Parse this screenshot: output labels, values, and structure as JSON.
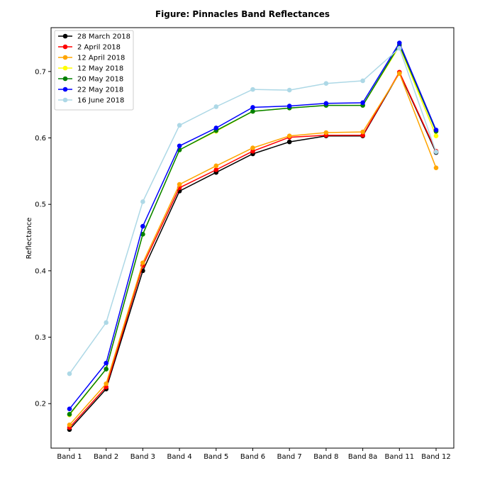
{
  "chart_data": {
    "type": "line",
    "title": "Figure: Pinnacles Band Reflectances",
    "xlabel": "",
    "ylabel": "Reflectance",
    "categories": [
      "Band 1",
      "Band 2",
      "Band 3",
      "Band 4",
      "Band 5",
      "Band 6",
      "Band 7",
      "Band 8",
      "Band 8a",
      "Band 11",
      "Band 12"
    ],
    "ylim": [
      0.133,
      0.766
    ],
    "yticks": [
      0.2,
      0.3,
      0.4,
      0.5,
      0.6,
      0.7
    ],
    "grid": false,
    "legend": "top-left",
    "marker": "circle",
    "series": [
      {
        "name": "28 March 2018",
        "color": "#000000",
        "values": [
          0.161,
          0.222,
          0.4,
          0.52,
          0.548,
          0.576,
          0.594,
          0.603,
          0.603,
          0.698,
          0.578
        ]
      },
      {
        "name": "2 April 2018",
        "color": "#ff0000",
        "values": [
          0.164,
          0.225,
          0.408,
          0.525,
          0.552,
          0.58,
          0.601,
          0.604,
          0.604,
          0.699,
          0.58
        ]
      },
      {
        "name": "12 April 2018",
        "color": "#ffa500",
        "values": [
          0.168,
          0.23,
          0.412,
          0.53,
          0.558,
          0.585,
          0.603,
          0.608,
          0.609,
          0.697,
          0.555
        ]
      },
      {
        "name": "12 May 2018",
        "color": "#ffff00",
        "values": [
          0.183,
          0.252,
          0.455,
          0.582,
          0.61,
          0.64,
          0.645,
          0.649,
          0.649,
          0.738,
          0.603
        ]
      },
      {
        "name": "20 May 2018",
        "color": "#008000",
        "values": [
          0.184,
          0.252,
          0.455,
          0.582,
          0.611,
          0.64,
          0.645,
          0.649,
          0.649,
          0.74,
          0.61
        ]
      },
      {
        "name": "22 May 2018",
        "color": "#0000ff",
        "values": [
          0.192,
          0.261,
          0.467,
          0.588,
          0.615,
          0.646,
          0.648,
          0.652,
          0.653,
          0.743,
          0.612
        ]
      },
      {
        "name": "16 June 2018",
        "color": "#add8e6",
        "values": [
          0.245,
          0.322,
          0.504,
          0.619,
          0.647,
          0.673,
          0.672,
          0.682,
          0.686,
          0.735,
          0.579
        ]
      }
    ]
  }
}
